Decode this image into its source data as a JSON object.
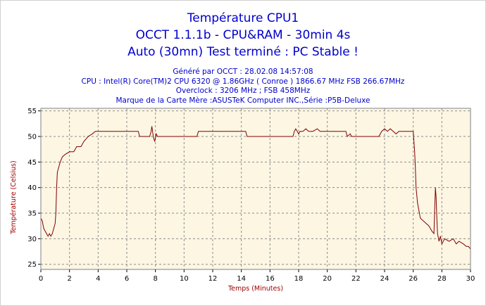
{
  "chart_data": {
    "type": "line",
    "title": "Température CPU1",
    "subtitle_lines": [
      "OCCT 1.1.1b - CPU&RAM - 30min 4s",
      "Auto (30mn) Test terminé : PC Stable !"
    ],
    "info_lines": [
      "Généré par OCCT : 28.02.08 14:57:08",
      "CPU : Intel(R) Core(TM)2 CPU 6320 @ 1.86GHz ( Conroe ) 1866.67 MHz FSB 266.67MHz",
      "Overclock : 3206 MHz ; FSB 458MHz",
      "Marque de la Carte Mère :ASUSTeK Computer INC.,Série :P5B-Deluxe"
    ],
    "xlabel": "Temps (Minutes)",
    "ylabel": "Température (Celsius)",
    "xlim": [
      0,
      30
    ],
    "ylim": [
      24,
      55.5
    ],
    "xticks": [
      0,
      2,
      4,
      6,
      8,
      10,
      12,
      14,
      16,
      18,
      20,
      22,
      24,
      26,
      28,
      30
    ],
    "yticks": [
      25,
      30,
      35,
      40,
      45,
      50,
      55
    ],
    "grid": true,
    "series": [
      {
        "color": "#800000",
        "points": [
          [
            0,
            34
          ],
          [
            0.1,
            33.5
          ],
          [
            0.2,
            32
          ],
          [
            0.3,
            31.5
          ],
          [
            0.4,
            31
          ],
          [
            0.5,
            30.5
          ],
          [
            0.6,
            31
          ],
          [
            0.7,
            30.5
          ],
          [
            0.8,
            31
          ],
          [
            0.9,
            32
          ],
          [
            1.0,
            33
          ],
          [
            1.05,
            35
          ],
          [
            1.1,
            40
          ],
          [
            1.15,
            43
          ],
          [
            1.25,
            44
          ],
          [
            1.35,
            45
          ],
          [
            1.5,
            46
          ],
          [
            1.7,
            46.5
          ],
          [
            2.0,
            47
          ],
          [
            2.3,
            47
          ],
          [
            2.5,
            48
          ],
          [
            2.8,
            48
          ],
          [
            3.0,
            49
          ],
          [
            3.3,
            50
          ],
          [
            3.6,
            50.5
          ],
          [
            3.8,
            51
          ],
          [
            4.2,
            51
          ],
          [
            5.0,
            51
          ],
          [
            6.0,
            51
          ],
          [
            6.8,
            51
          ],
          [
            6.9,
            50
          ],
          [
            7.6,
            50
          ],
          [
            7.7,
            51
          ],
          [
            7.75,
            52
          ],
          [
            7.85,
            50
          ],
          [
            7.95,
            49
          ],
          [
            8.05,
            50.5
          ],
          [
            8.15,
            50
          ],
          [
            9.0,
            50
          ],
          [
            10.0,
            50
          ],
          [
            10.9,
            50
          ],
          [
            11.0,
            51
          ],
          [
            12.0,
            51
          ],
          [
            13.0,
            51
          ],
          [
            14.3,
            51
          ],
          [
            14.4,
            50
          ],
          [
            15.0,
            50
          ],
          [
            16.0,
            50
          ],
          [
            17.0,
            50
          ],
          [
            17.6,
            50
          ],
          [
            17.7,
            51
          ],
          [
            17.8,
            51.5
          ],
          [
            17.9,
            51
          ],
          [
            18.0,
            50.5
          ],
          [
            18.1,
            51
          ],
          [
            18.3,
            51
          ],
          [
            18.5,
            51.5
          ],
          [
            18.7,
            51
          ],
          [
            19.0,
            51
          ],
          [
            19.3,
            51.5
          ],
          [
            19.5,
            51
          ],
          [
            20.0,
            51
          ],
          [
            21.0,
            51
          ],
          [
            21.3,
            51
          ],
          [
            21.4,
            50
          ],
          [
            21.6,
            50.5
          ],
          [
            21.7,
            50
          ],
          [
            22.0,
            50
          ],
          [
            23.0,
            50
          ],
          [
            23.6,
            50
          ],
          [
            23.8,
            51
          ],
          [
            24.0,
            51.5
          ],
          [
            24.2,
            51
          ],
          [
            24.4,
            51.5
          ],
          [
            24.6,
            51
          ],
          [
            24.8,
            50.5
          ],
          [
            25.0,
            51
          ],
          [
            25.5,
            51
          ],
          [
            26.0,
            51
          ],
          [
            26.05,
            49
          ],
          [
            26.1,
            47
          ],
          [
            26.15,
            44
          ],
          [
            26.2,
            40
          ],
          [
            26.3,
            37
          ],
          [
            26.4,
            35.5
          ],
          [
            26.5,
            34
          ],
          [
            26.7,
            33.5
          ],
          [
            26.9,
            33
          ],
          [
            27.1,
            32.5
          ],
          [
            27.3,
            31.5
          ],
          [
            27.45,
            31
          ],
          [
            27.5,
            36
          ],
          [
            27.55,
            40
          ],
          [
            27.6,
            38
          ],
          [
            27.65,
            34
          ],
          [
            27.7,
            31
          ],
          [
            27.8,
            29.5
          ],
          [
            27.9,
            30.5
          ],
          [
            28.0,
            29
          ],
          [
            28.2,
            30
          ],
          [
            28.5,
            29.5
          ],
          [
            28.8,
            30
          ],
          [
            29.0,
            29
          ],
          [
            29.2,
            29.5
          ],
          [
            29.5,
            29
          ],
          [
            29.7,
            28.5
          ],
          [
            29.85,
            28.5
          ],
          [
            30.0,
            28
          ]
        ]
      }
    ]
  }
}
